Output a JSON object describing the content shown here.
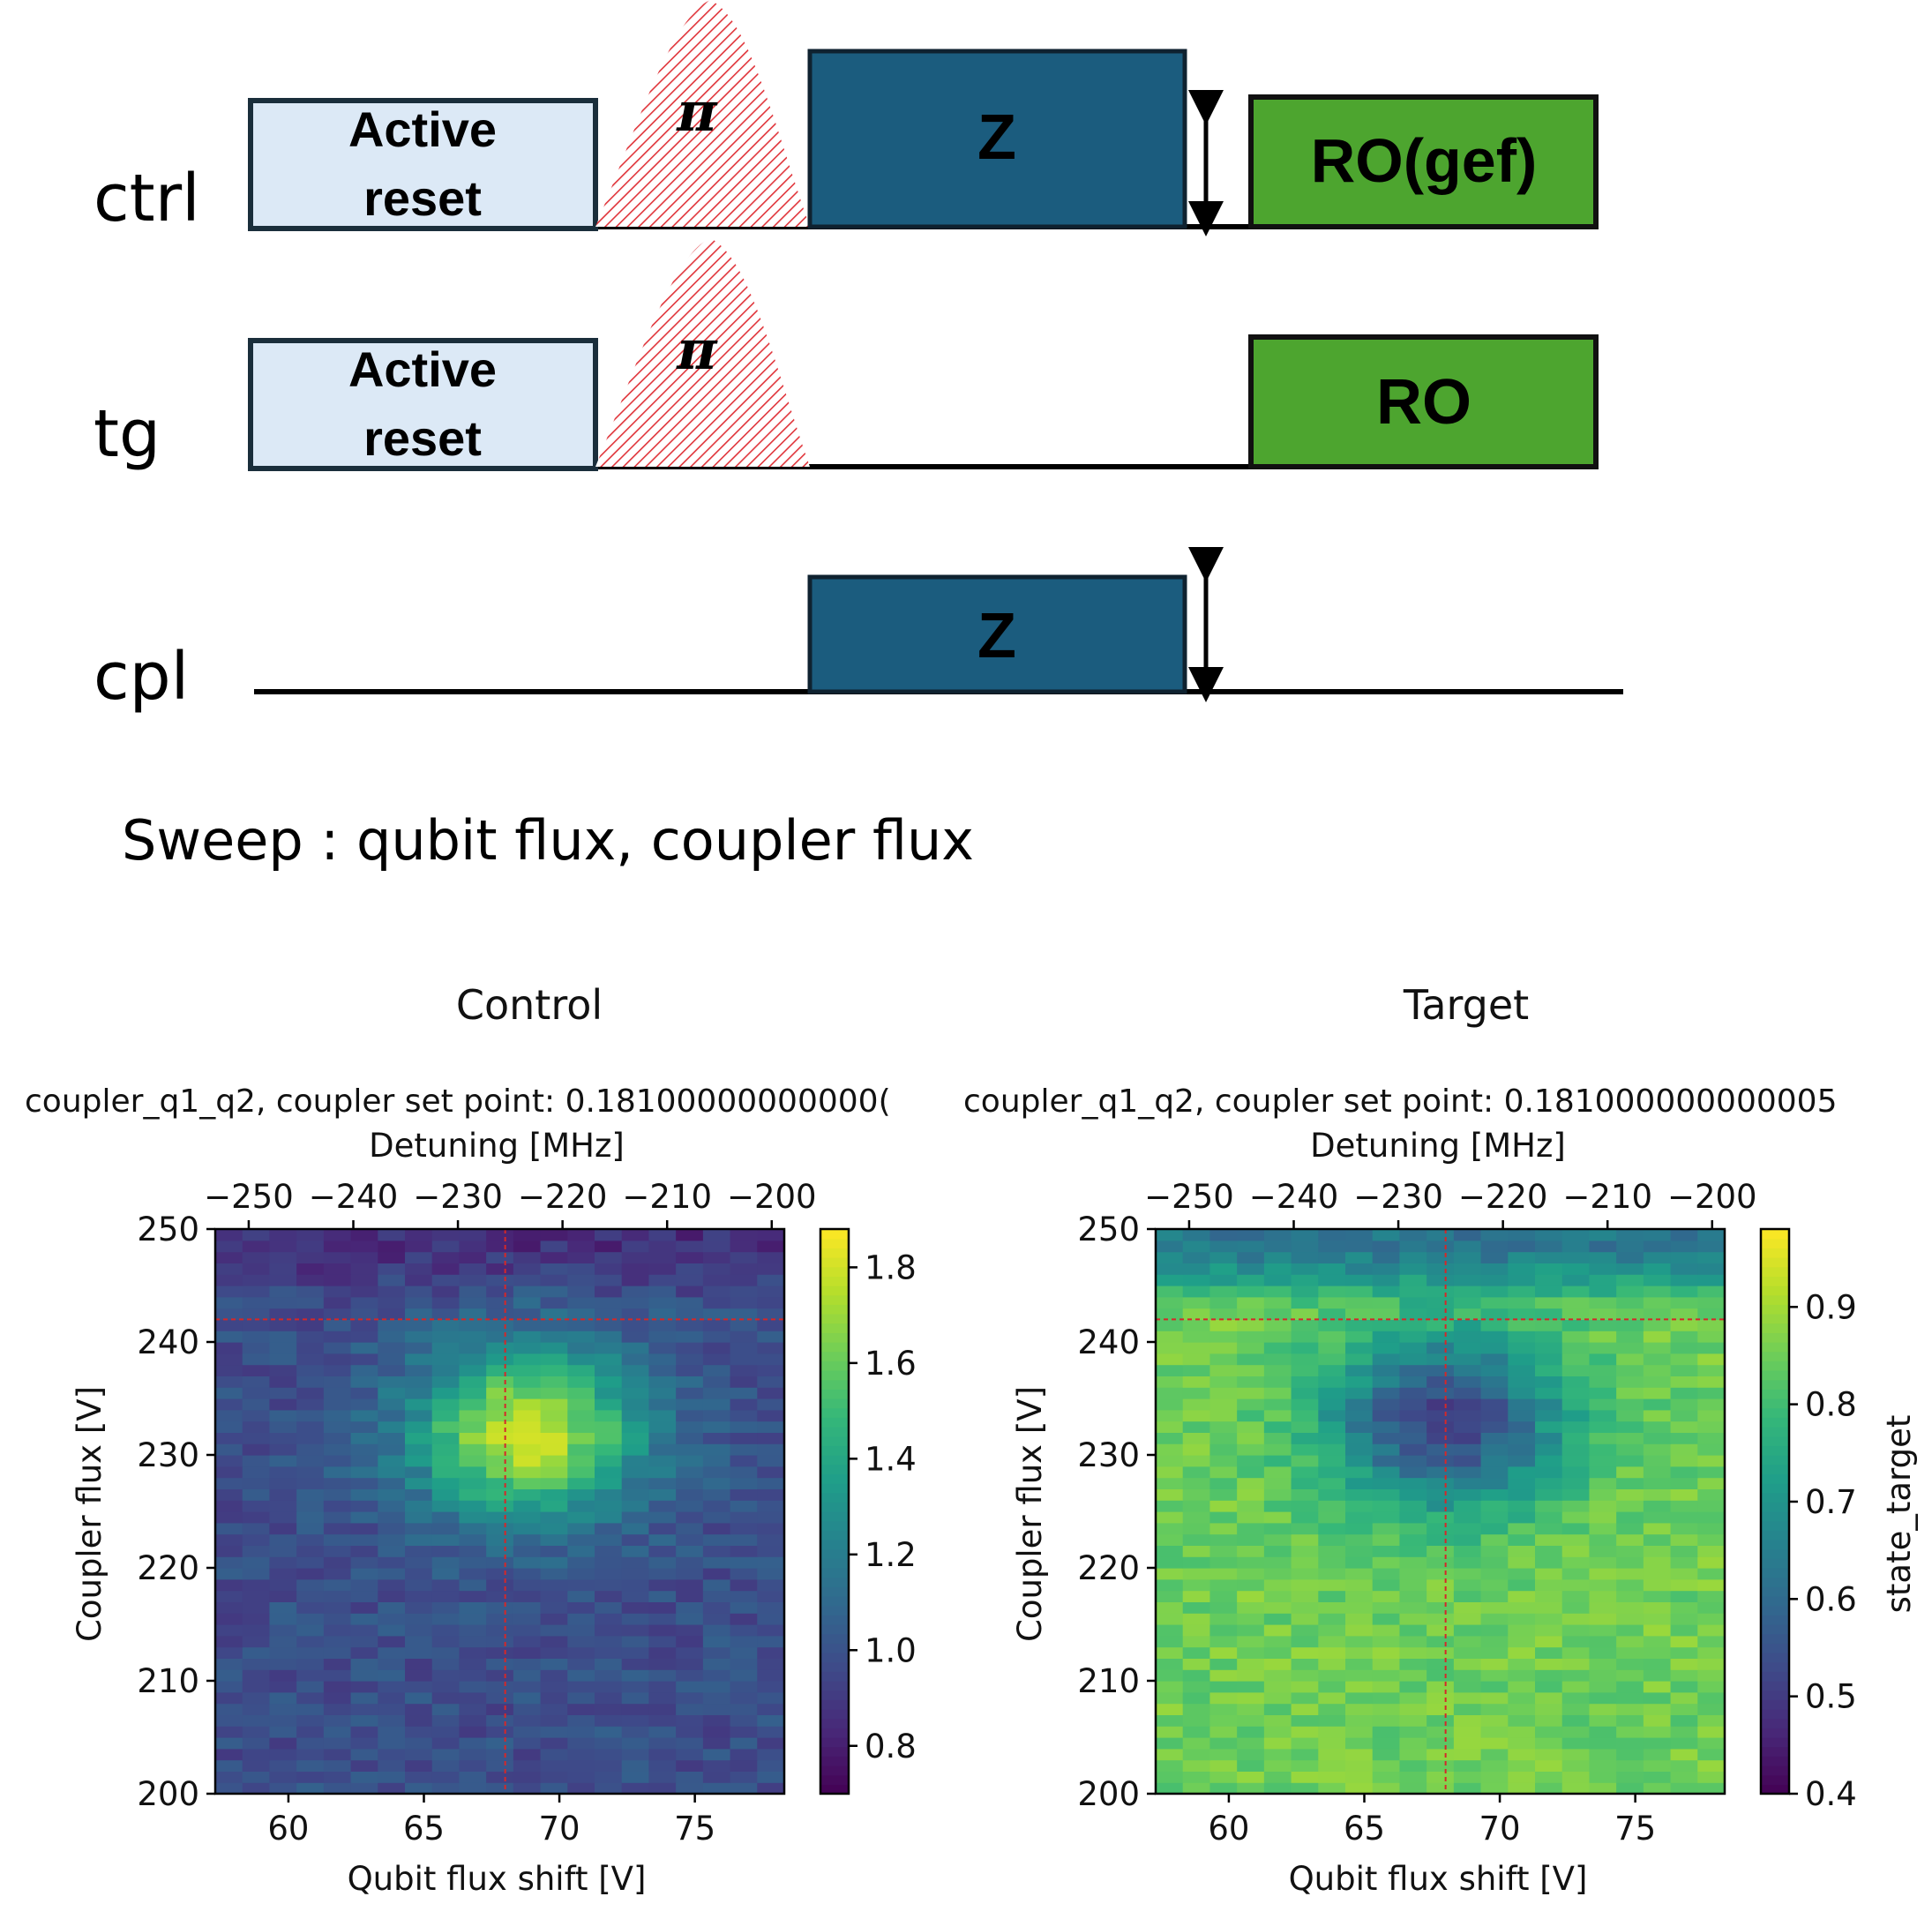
{
  "sequence": {
    "channels": [
      {
        "name": "ctrl"
      },
      {
        "name": "tg"
      },
      {
        "name": "cpl"
      }
    ],
    "active_reset_line1": "Active",
    "active_reset_line2": "reset",
    "pi_label": "π",
    "z_label": "Z",
    "ro_gef_label": "RO(gef)",
    "ro_label": "RO",
    "colors": {
      "active_reset_fill": "#dce9f6",
      "active_reset_stroke": "#1a2e3b",
      "z_fill": "#1b5c7e",
      "ro_fill": "#4da52f",
      "pi_hatch": "#e0343a"
    }
  },
  "sweep_text": "Sweep : qubit flux, coupler flux",
  "chart_data": [
    {
      "type": "heatmap",
      "title": "Control",
      "subtitle": "coupler_q1_q2, coupler set point: 0.18100000000000(",
      "xlabel": "Qubit flux shift [V]",
      "ylabel": "Coupler flux [V]",
      "top_xlabel": "Detuning [MHz]",
      "xlim": [
        57.3,
        78.3
      ],
      "ylim": [
        200,
        250
      ],
      "x_ticks": [
        "60",
        "65",
        "70",
        "75"
      ],
      "y_ticks": [
        "200",
        "210",
        "220",
        "230",
        "240",
        "250"
      ],
      "top_ticks": [
        "−250",
        "−240",
        "−230",
        "−220",
        "−210",
        "−200"
      ],
      "top_tick_values": [
        -250,
        -240,
        -230,
        -220,
        -210,
        -200
      ],
      "colorbar_label": "",
      "colorbar_range": [
        0.7,
        1.88
      ],
      "colorbar_ticks": [
        "0.8",
        "1.0",
        "1.2",
        "1.4",
        "1.6",
        "1.8"
      ],
      "colormap": "viridis",
      "marker_x": 68.0,
      "marker_y": 242.0,
      "feature": {
        "center_x": 68.8,
        "center_y": 232,
        "peak": 1.8,
        "background": 0.98
      }
    },
    {
      "type": "heatmap",
      "title": "Target",
      "subtitle": "coupler_q1_q2, coupler set point: 0.181000000000005",
      "xlabel": "Qubit flux shift [V]",
      "ylabel": "Coupler flux [V]",
      "top_xlabel": "Detuning [MHz]",
      "xlim": [
        57.3,
        78.3
      ],
      "ylim": [
        200,
        250
      ],
      "x_ticks": [
        "60",
        "65",
        "70",
        "75"
      ],
      "y_ticks": [
        "200",
        "210",
        "220",
        "230",
        "240",
        "250"
      ],
      "top_ticks": [
        "−250",
        "−240",
        "−230",
        "−220",
        "−210",
        "−200"
      ],
      "top_tick_values": [
        -250,
        -240,
        -230,
        -220,
        -210,
        -200
      ],
      "colorbar_label": "state_target",
      "colorbar_range": [
        0.4,
        0.98
      ],
      "colorbar_ticks": [
        "0.4",
        "0.5",
        "0.6",
        "0.7",
        "0.8",
        "0.9"
      ],
      "colormap": "viridis",
      "marker_x": 68.0,
      "marker_y": 242.0,
      "feature": {
        "center_x": 68.0,
        "center_y": 233,
        "peak": 0.5,
        "background": 0.85
      }
    }
  ]
}
